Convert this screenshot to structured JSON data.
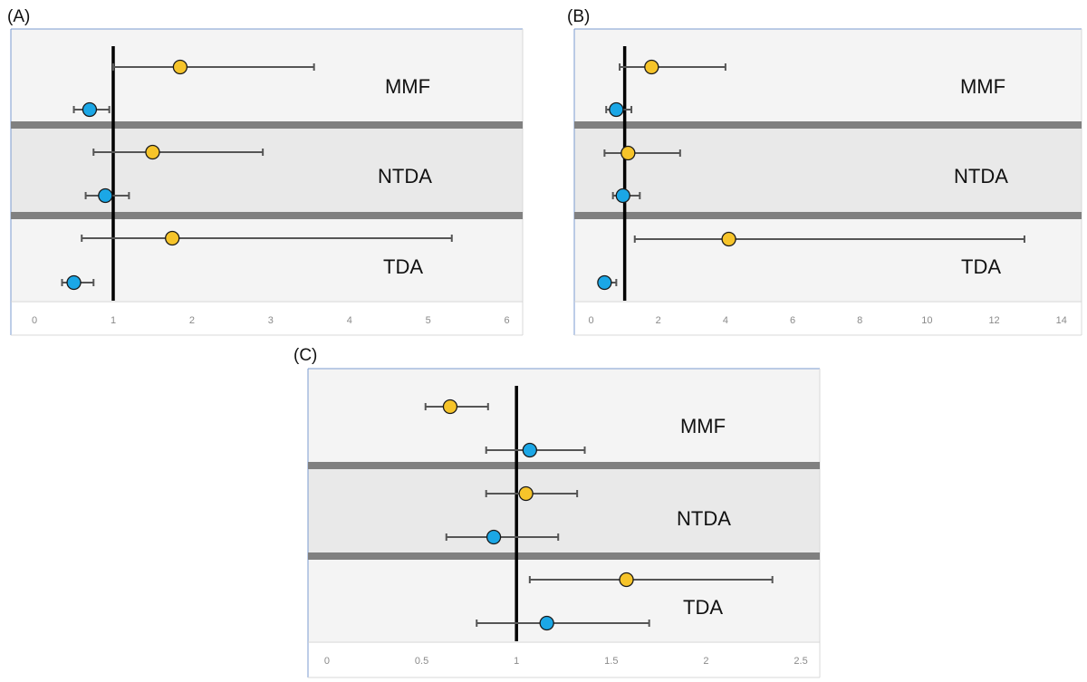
{
  "colors": {
    "treatment_marker": "#F6C42A",
    "control_marker": "#1BA7E6",
    "marker_outline": "#1a1a1a",
    "error_bar": "#555555",
    "reference_line": "#000000",
    "band_separator": "#808080",
    "band_light": "#F4F4F4",
    "band_mid": "#E9E9E9",
    "frame": "#7B9BD0",
    "axis_line": "#D0D0D0"
  },
  "chart_data": [
    {
      "type": "scatter",
      "panel_label": "(A)",
      "xlim": [
        -0.3,
        6.2
      ],
      "ticks": [
        0,
        1,
        2,
        3,
        4,
        5,
        6
      ],
      "tick_labels": [
        "0",
        "1",
        "2",
        "3",
        "4",
        "5",
        "6"
      ],
      "reference_value": 1,
      "groups": [
        "MMF",
        "NTDA",
        "TDA"
      ],
      "series": [
        {
          "name": "yellow",
          "points": [
            {
              "group": "MMF",
              "value": 1.85,
              "lower": 1.0,
              "upper": 3.55
            },
            {
              "group": "NTDA",
              "value": 1.5,
              "lower": 0.75,
              "upper": 2.9
            },
            {
              "group": "TDA",
              "value": 1.75,
              "lower": 0.6,
              "upper": 5.3
            }
          ]
        },
        {
          "name": "blue",
          "points": [
            {
              "group": "MMF",
              "value": 0.7,
              "lower": 0.5,
              "upper": 0.95
            },
            {
              "group": "NTDA",
              "value": 0.9,
              "lower": 0.65,
              "upper": 1.2
            },
            {
              "group": "TDA",
              "value": 0.5,
              "lower": 0.35,
              "upper": 0.75
            }
          ]
        }
      ]
    },
    {
      "type": "scatter",
      "panel_label": "(B)",
      "xlim": [
        -0.5,
        14.6
      ],
      "ticks": [
        0,
        2,
        4,
        6,
        8,
        10,
        12,
        14
      ],
      "tick_labels": [
        "0",
        "2",
        "4",
        "6",
        "8",
        "10",
        "12",
        "14"
      ],
      "reference_value": 1,
      "groups": [
        "MMF",
        "NTDA",
        "TDA"
      ],
      "series": [
        {
          "name": "yellow",
          "points": [
            {
              "group": "MMF",
              "value": 1.8,
              "lower": 0.85,
              "upper": 4.0
            },
            {
              "group": "NTDA",
              "value": 1.1,
              "lower": 0.4,
              "upper": 2.65
            },
            {
              "group": "TDA",
              "value": 4.1,
              "lower": 1.3,
              "upper": 12.9
            }
          ]
        },
        {
          "name": "blue",
          "points": [
            {
              "group": "MMF",
              "value": 0.75,
              "lower": 0.45,
              "upper": 1.2
            },
            {
              "group": "NTDA",
              "value": 0.95,
              "lower": 0.65,
              "upper": 1.45
            },
            {
              "group": "TDA",
              "value": 0.4,
              "lower": 0.25,
              "upper": 0.75
            }
          ]
        }
      ]
    },
    {
      "type": "scatter",
      "panel_label": "(C)",
      "xlim": [
        -0.1,
        2.6
      ],
      "ticks": [
        0,
        0.5,
        1,
        1.5,
        2,
        2.5
      ],
      "tick_labels": [
        "0",
        "0.5",
        "1",
        "1.5",
        "2",
        "2.5"
      ],
      "reference_value": 1,
      "groups": [
        "MMF",
        "NTDA",
        "TDA"
      ],
      "series": [
        {
          "name": "yellow",
          "points": [
            {
              "group": "MMF",
              "value": 0.65,
              "lower": 0.52,
              "upper": 0.85
            },
            {
              "group": "NTDA",
              "value": 1.05,
              "lower": 0.84,
              "upper": 1.32
            },
            {
              "group": "TDA",
              "value": 1.58,
              "lower": 1.07,
              "upper": 2.35
            }
          ]
        },
        {
          "name": "blue",
          "points": [
            {
              "group": "MMF",
              "value": 1.07,
              "lower": 0.84,
              "upper": 1.36
            },
            {
              "group": "NTDA",
              "value": 0.88,
              "lower": 0.63,
              "upper": 1.22
            },
            {
              "group": "TDA",
              "value": 1.16,
              "lower": 0.79,
              "upper": 1.7
            }
          ]
        }
      ]
    }
  ]
}
